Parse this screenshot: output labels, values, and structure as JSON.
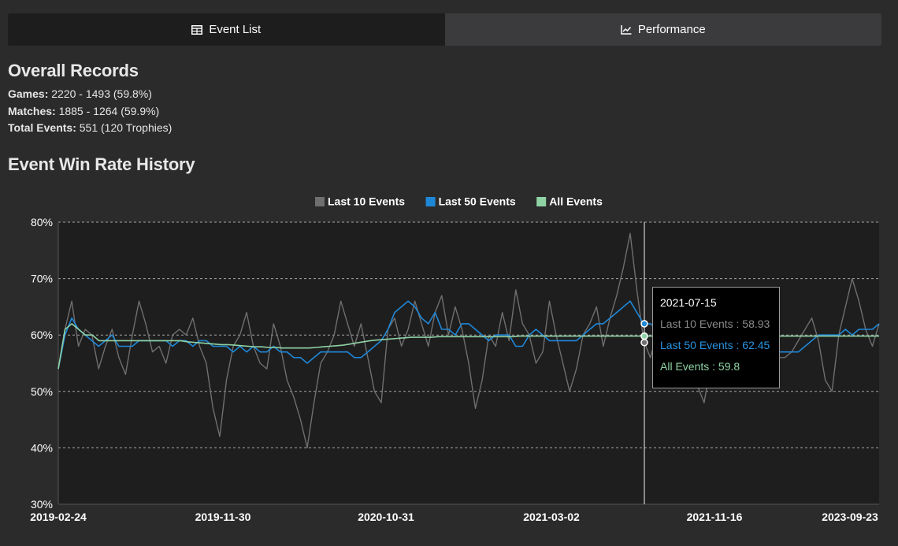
{
  "tabs": {
    "event_list": {
      "label": "Event List",
      "icon": "table-icon"
    },
    "performance": {
      "label": "Performance",
      "icon": "line-chart-icon"
    }
  },
  "overall": {
    "title": "Overall Records",
    "games_label": "Games:",
    "games_value": "2220 - 1493 (59.8%)",
    "matches_label": "Matches:",
    "matches_value": "1885 - 1264 (59.9%)",
    "events_label": "Total Events:",
    "events_value": "551 (120 Trophies)"
  },
  "history_title": "Event Win Rate History",
  "tooltip": {
    "date": "2021-07-15",
    "last10": "Last 10 Events : 58.93",
    "last50": "Last 50 Events : 62.45",
    "all": "All Events : 59.8"
  },
  "colors": {
    "last10": "#6f6f6f",
    "last50": "#1e88d8",
    "all": "#8fd3a5",
    "plot_bg": "#1e1e1f"
  },
  "chart_data": {
    "type": "line",
    "xlabel": "",
    "ylabel": "",
    "ylim": [
      30,
      80
    ],
    "yticks": [
      "30%",
      "40%",
      "50%",
      "60%",
      "70%",
      "80%"
    ],
    "xticks": [
      "2019-02-24",
      "2019-11-30",
      "2020-10-31",
      "2021-03-02",
      "2021-11-16",
      "2023-09-23"
    ],
    "legend": "top-center",
    "grid": true,
    "hover_date": "2021-07-15",
    "series": [
      {
        "name": "Last 10 Events",
        "color": "#6f6f6f",
        "values": [
          54,
          61,
          66,
          58,
          61,
          60,
          54,
          58,
          61,
          56,
          53,
          60,
          66,
          62,
          57,
          58,
          55,
          60,
          61,
          60,
          63,
          58,
          55,
          47,
          42,
          52,
          58,
          60,
          64,
          58,
          55,
          54,
          62,
          58,
          52,
          49,
          45,
          40,
          48,
          55,
          57,
          60,
          66,
          62,
          58,
          62,
          56,
          50,
          48,
          61,
          63,
          58,
          61,
          66,
          62,
          58,
          64,
          67,
          60,
          65,
          61,
          55,
          47,
          52,
          60,
          58,
          64,
          59,
          68,
          62,
          60,
          55,
          57,
          66,
          60,
          55,
          50,
          54,
          60,
          62,
          65,
          58,
          63,
          67,
          72,
          78,
          68,
          59,
          56,
          60,
          60,
          62,
          64,
          59,
          54,
          51,
          48,
          55,
          58,
          60,
          62,
          58,
          60,
          57,
          61,
          62,
          59,
          56,
          56,
          57,
          59,
          61,
          63,
          59,
          52,
          50,
          60,
          65,
          70,
          66,
          61,
          58,
          62
        ]
      },
      {
        "name": "Last 50 Events",
        "color": "#1e88d8",
        "values": [
          54,
          60,
          63,
          61,
          60,
          59,
          58,
          59,
          60,
          58,
          58,
          58,
          59,
          59,
          59,
          59,
          59,
          58,
          59,
          59,
          58,
          59,
          59,
          58,
          58,
          58,
          57,
          58,
          57,
          58,
          57,
          57,
          58,
          57,
          57,
          56,
          56,
          55,
          56,
          57,
          57,
          57,
          57,
          57,
          56,
          56,
          57,
          58,
          59,
          61,
          64,
          65,
          66,
          65,
          63,
          62,
          64,
          61,
          61,
          60,
          62,
          62,
          61,
          60,
          59,
          60,
          60,
          60,
          58,
          58,
          60,
          61,
          60,
          59,
          59,
          59,
          59,
          59,
          60,
          61,
          62,
          62,
          63,
          64,
          65,
          66,
          64,
          62,
          62,
          61,
          60,
          60,
          59,
          59,
          59,
          60,
          60,
          60,
          58,
          59,
          60,
          59,
          59,
          59,
          59,
          58,
          58,
          57,
          57,
          57,
          57,
          58,
          59,
          60,
          60,
          60,
          60,
          61,
          60,
          61,
          61,
          61,
          62
        ]
      },
      {
        "name": "All Events",
        "color": "#8fd3a5",
        "values": [
          54,
          61,
          62,
          61,
          60,
          60,
          59,
          59,
          59,
          59,
          59,
          59,
          59,
          59,
          59,
          59,
          59,
          59,
          59,
          58.8,
          58.7,
          58.6,
          58.5,
          58.4,
          58.3,
          58.3,
          58.2,
          58.1,
          58,
          57.9,
          57.9,
          57.8,
          57.8,
          57.7,
          57.7,
          57.7,
          57.7,
          57.7,
          57.8,
          57.9,
          58,
          58.1,
          58.2,
          58.4,
          58.6,
          58.8,
          59,
          59.1,
          59.2,
          59.3,
          59.4,
          59.5,
          59.6,
          59.6,
          59.6,
          59.6,
          59.7,
          59.7,
          59.7,
          59.7,
          59.7,
          59.7,
          59.7,
          59.7,
          59.7,
          59.7,
          59.7,
          59.7,
          59.8,
          59.8,
          59.8,
          59.8,
          59.8,
          59.8,
          59.8,
          59.8,
          59.8,
          59.8,
          59.8,
          59.8,
          59.8,
          59.8,
          59.8,
          59.8,
          59.8,
          59.8,
          59.8,
          59.8,
          59.8,
          59.8,
          59.8,
          59.8,
          59.8,
          59.8,
          59.8,
          59.8,
          59.8,
          59.8,
          59.8,
          59.8,
          59.8,
          59.8,
          59.8,
          59.8,
          59.8,
          59.8,
          59.8,
          59.8,
          59.8,
          59.8,
          59.8,
          59.8,
          59.8,
          59.8,
          59.8,
          59.8,
          59.8,
          59.8,
          59.8,
          59.8,
          59.8,
          59.8
        ]
      }
    ]
  }
}
